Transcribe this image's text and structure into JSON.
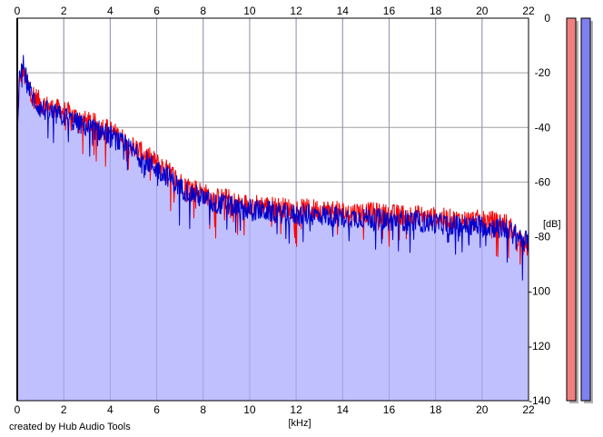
{
  "chart_data": {
    "type": "area",
    "title": "",
    "xlabel": "[kHz]",
    "ylabel": "[dB]",
    "xlim": [
      0,
      22
    ],
    "ylim": [
      -140,
      0
    ],
    "x_ticks": [
      0,
      2,
      4,
      6,
      8,
      10,
      12,
      14,
      16,
      18,
      20,
      22
    ],
    "y_ticks": [
      0,
      -20,
      -40,
      -60,
      -80,
      -100,
      -120,
      -140
    ],
    "x_tick_labels": [
      "0",
      "2",
      "4",
      "6",
      "8",
      "10",
      "12",
      "14",
      "16",
      "18",
      "20",
      "22"
    ],
    "y_tick_labels": [
      "0",
      "-20",
      "-40",
      "-60",
      "-80",
      "-100",
      "-120",
      "-140"
    ],
    "grid": true,
    "fill_color": "#c0c0ff",
    "series": [
      {
        "color": "#ff0000",
        "x": [
          0,
          0.1,
          0.2,
          0.3,
          0.4,
          0.6,
          0.8,
          1.0,
          1.5,
          2.0,
          2.5,
          3.0,
          3.5,
          4.0,
          4.5,
          5.0,
          5.5,
          6.0,
          6.5,
          7.0,
          7.5,
          8.0,
          8.5,
          9.0,
          9.5,
          10.0,
          11.0,
          12.0,
          13.0,
          14.0,
          15.0,
          16.0,
          17.0,
          18.0,
          19.0,
          20.0,
          21.0,
          22.0
        ],
        "values": [
          -40,
          -24,
          -19,
          -21,
          -23,
          -27,
          -29,
          -31,
          -33,
          -34,
          -36,
          -38,
          -39,
          -41,
          -44,
          -47,
          -50,
          -53,
          -56,
          -60,
          -62,
          -64,
          -66,
          -66,
          -68,
          -68,
          -69,
          -70,
          -70,
          -71,
          -71,
          -72,
          -72,
          -73,
          -74,
          -74,
          -75,
          -84
        ]
      },
      {
        "color": "#0000cc",
        "x": [
          0,
          0.1,
          0.2,
          0.3,
          0.4,
          0.6,
          0.8,
          1.0,
          1.5,
          2.0,
          2.5,
          3.0,
          3.5,
          4.0,
          4.5,
          5.0,
          5.5,
          6.0,
          6.5,
          7.0,
          7.5,
          8.0,
          8.5,
          9.0,
          9.5,
          10.0,
          11.0,
          12.0,
          13.0,
          14.0,
          15.0,
          16.0,
          17.0,
          18.0,
          19.0,
          20.0,
          21.0,
          22.0
        ],
        "values": [
          -45,
          -22,
          -16,
          -18,
          -22,
          -28,
          -31,
          -33,
          -35,
          -36,
          -38,
          -40,
          -41,
          -43,
          -46,
          -49,
          -52,
          -55,
          -58,
          -62,
          -64,
          -66,
          -68,
          -68,
          -70,
          -70,
          -71,
          -72,
          -72,
          -73,
          -73,
          -74,
          -74,
          -75,
          -76,
          -76,
          -77,
          -82
        ]
      }
    ],
    "level_meters": [
      {
        "color": "#f08080",
        "value_db": 0
      },
      {
        "color": "#8080f0",
        "value_db": 0
      }
    ]
  },
  "footer": {
    "credit": "created by Hub Audio Tools"
  }
}
